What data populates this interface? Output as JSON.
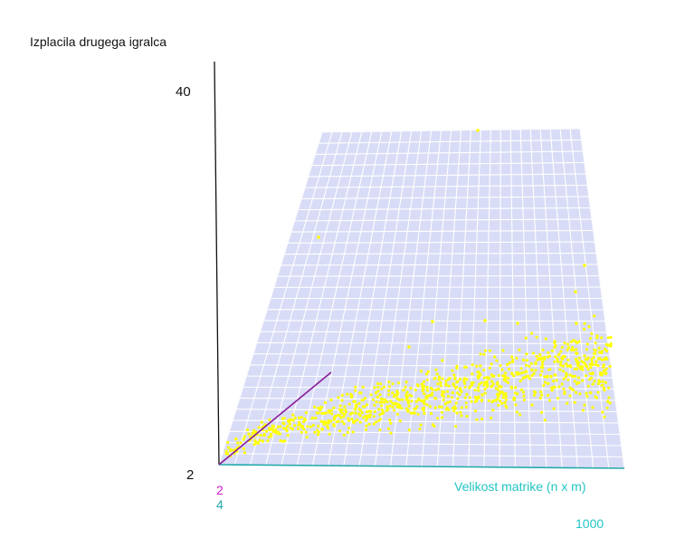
{
  "chart_data": {
    "type": "scatter",
    "title": "",
    "zlabel": "Izplacila drugega igralca",
    "xlabel": "Velikost matrike (n x m)",
    "z_ticks": [
      "40",
      "2"
    ],
    "x_ticks": [
      "4",
      "1000"
    ],
    "y_ticks": [
      "2"
    ],
    "xlim": [
      4,
      1000
    ],
    "zlim": [
      2,
      40
    ],
    "grid": true,
    "colors": {
      "points": "#ffff00",
      "plane": "#d9dcf6",
      "grid": "#ffffff",
      "x_axis": "#22aaaa",
      "y_axis": "#aa22aa",
      "z_axis": "#111111"
    }
  }
}
